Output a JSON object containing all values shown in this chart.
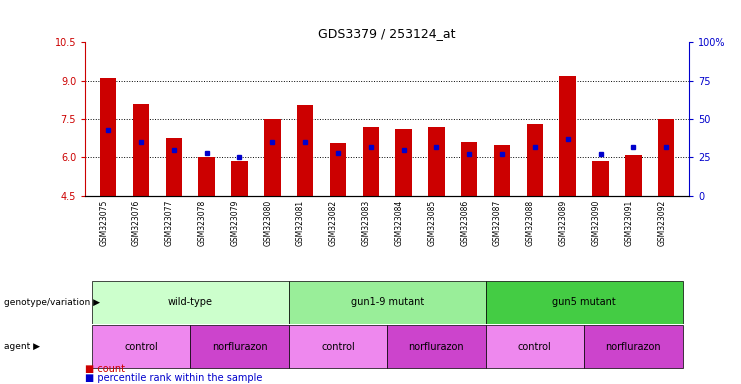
{
  "title": "GDS3379 / 253124_at",
  "samples": [
    "GSM323075",
    "GSM323076",
    "GSM323077",
    "GSM323078",
    "GSM323079",
    "GSM323080",
    "GSM323081",
    "GSM323082",
    "GSM323083",
    "GSM323084",
    "GSM323085",
    "GSM323086",
    "GSM323087",
    "GSM323088",
    "GSM323089",
    "GSM323090",
    "GSM323091",
    "GSM323092"
  ],
  "bar_values": [
    9.1,
    8.1,
    6.75,
    6.0,
    5.85,
    7.5,
    8.05,
    6.55,
    7.2,
    7.1,
    7.2,
    6.6,
    6.5,
    7.3,
    9.2,
    5.85,
    6.1,
    7.5
  ],
  "dot_percentile": [
    43,
    35,
    30,
    28,
    25,
    35,
    35,
    28,
    32,
    30,
    32,
    27,
    27,
    32,
    37,
    27,
    32,
    32
  ],
  "bar_color": "#cc0000",
  "dot_color": "#0000cc",
  "ylim_left": [
    4.5,
    10.5
  ],
  "yticks_left": [
    4.5,
    6.0,
    7.5,
    9.0,
    10.5
  ],
  "yticks_right": [
    0,
    25,
    50,
    75,
    100
  ],
  "yticklabels_right": [
    "0",
    "25",
    "50",
    "75",
    "100%"
  ],
  "grid_lines": [
    6.0,
    7.5,
    9.0
  ],
  "groups": [
    {
      "label": "wild-type",
      "start": 0,
      "end": 5,
      "color": "#ccffcc"
    },
    {
      "label": "gun1-9 mutant",
      "start": 6,
      "end": 11,
      "color": "#99ee99"
    },
    {
      "label": "gun5 mutant",
      "start": 12,
      "end": 17,
      "color": "#44cc44"
    }
  ],
  "agents": [
    {
      "label": "control",
      "start": 0,
      "end": 2,
      "color": "#ee88ee"
    },
    {
      "label": "norflurazon",
      "start": 3,
      "end": 5,
      "color": "#cc44cc"
    },
    {
      "label": "control",
      "start": 6,
      "end": 8,
      "color": "#ee88ee"
    },
    {
      "label": "norflurazon",
      "start": 9,
      "end": 11,
      "color": "#cc44cc"
    },
    {
      "label": "control",
      "start": 12,
      "end": 14,
      "color": "#ee88ee"
    },
    {
      "label": "norflurazon",
      "start": 15,
      "end": 17,
      "color": "#cc44cc"
    }
  ],
  "genotype_label": "genotype/variation",
  "agent_label": "agent",
  "legend_count": "count",
  "legend_percentile": "percentile rank within the sample",
  "xtick_bg_color": "#d0d0d0"
}
